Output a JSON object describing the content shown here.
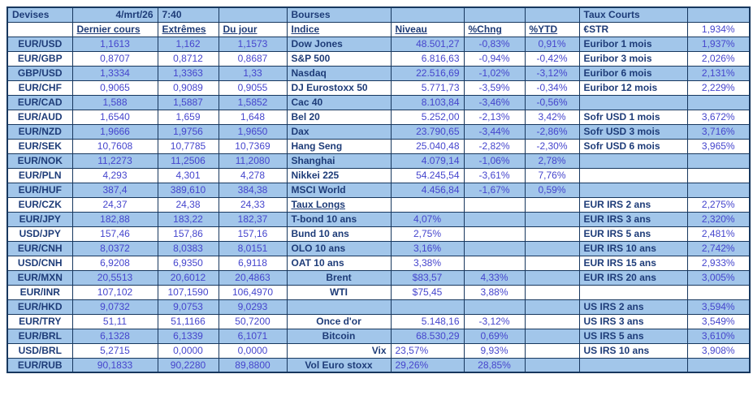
{
  "colors": {
    "band_blue": "#A2C6EA",
    "border_navy": "#17375E",
    "label_navy": "#1E3C78",
    "value_blue": "#4545CD"
  },
  "devises": {
    "title": "Devises",
    "date": "4/mrt/26",
    "time": "7:40",
    "headers": [
      "Dernier cours",
      "Extrêmes",
      "Du jour"
    ],
    "rows": [
      [
        "EUR/USD",
        "1,1613",
        "1,162",
        "1,1573"
      ],
      [
        "EUR/GBP",
        "0,8707",
        "0,8712",
        "0,8687"
      ],
      [
        "GBP/USD",
        "1,3334",
        "1,3363",
        "1,33"
      ],
      [
        "EUR/CHF",
        "0,9065",
        "0,9089",
        "0,9055"
      ],
      [
        "EUR/CAD",
        "1,588",
        "1,5887",
        "1,5852"
      ],
      [
        "EUR/AUD",
        "1,6540",
        "1,659",
        "1,648"
      ],
      [
        "EUR/NZD",
        "1,9666",
        "1,9756",
        "1,9650"
      ],
      [
        "EUR/SEK",
        "10,7608",
        "10,7785",
        "10,7369"
      ],
      [
        "EUR/NOK",
        "11,2273",
        "11,2506",
        "11,2080"
      ],
      [
        "EUR/PLN",
        "4,293",
        "4,301",
        "4,278"
      ],
      [
        "EUR/HUF",
        "387,4",
        "389,610",
        "384,38"
      ],
      [
        "EUR/CZK",
        "24,37",
        "24,38",
        "24,33"
      ],
      [
        "EUR/JPY",
        "182,88",
        "183,22",
        "182,37"
      ],
      [
        "USD/JPY",
        "157,46",
        "157,86",
        "157,16"
      ],
      [
        "EUR/CNH",
        "8,0372",
        "8,0383",
        "8,0151"
      ],
      [
        "USD/CNH",
        "6,9208",
        "6,9350",
        "6,9118"
      ],
      [
        "EUR/MXN",
        "20,5513",
        "20,6012",
        "20,4863"
      ],
      [
        "EUR/INR",
        "107,102",
        "107,1590",
        "106,4970"
      ],
      [
        "EUR/HKD",
        "9,0732",
        "9,0753",
        "9,0293"
      ],
      [
        "EUR/TRY",
        "51,11",
        "51,1166",
        "50,7200"
      ],
      [
        "EUR/BRL",
        "6,1328",
        "6,1339",
        "6,1071"
      ],
      [
        "USD/BRL",
        "5,2715",
        "0,0000",
        "0,0000"
      ],
      [
        "EUR/RUB",
        "90,1833",
        "90,2280",
        "89,8800"
      ]
    ]
  },
  "bourses": {
    "title": "Bourses",
    "headers": [
      "Indice",
      "Niveau",
      "%Chng",
      "%YTD"
    ],
    "indices": [
      [
        "Dow Jones",
        "48.501,27",
        "-0,83%",
        "0,91%"
      ],
      [
        "S&P 500",
        "6.816,63",
        "-0,94%",
        "-0,42%"
      ],
      [
        "Nasdaq",
        "22.516,69",
        "-1,02%",
        "-3,12%"
      ],
      [
        "DJ Eurostoxx 50",
        "5.771,73",
        "-3,59%",
        "-0,34%"
      ],
      [
        "Cac 40",
        "8.103,84",
        "-3,46%",
        "-0,56%"
      ],
      [
        "Bel 20",
        "5.252,00",
        "-2,13%",
        "3,42%"
      ],
      [
        "Dax",
        "23.790,65",
        "-3,44%",
        "-2,86%"
      ],
      [
        "Hang Seng",
        "25.040,48",
        "-2,82%",
        "-2,30%"
      ],
      [
        "Shanghai",
        "4.079,14",
        "-1,06%",
        "2,78%"
      ],
      [
        "Nikkei 225",
        "54.245,54",
        "-3,61%",
        "7,76%"
      ],
      [
        "MSCI World",
        "4.456,84",
        "-1,67%",
        "0,59%"
      ]
    ],
    "taux_longs": {
      "title": "Taux Longs",
      "rows": [
        [
          "T-bond 10 ans",
          "4,07%"
        ],
        [
          "Bund 10 ans",
          "2,75%"
        ],
        [
          "OLO 10 ans",
          "3,16%"
        ],
        [
          "OAT 10 ans",
          "3,38%"
        ]
      ]
    },
    "commodities": [
      [
        "Brent",
        "$83,57",
        "4,33%"
      ],
      [
        "WTI",
        "$75,45",
        "3,88%"
      ]
    ],
    "others": [
      [
        "Once d'or",
        "5.148,16",
        "-3,12%"
      ],
      [
        "Bitcoin",
        "68.530,29",
        "0,69%"
      ],
      [
        "Vix",
        "23,57%",
        "9,93%"
      ],
      [
        "Vol Euro stoxx",
        "29,26%",
        "28,85%"
      ]
    ]
  },
  "taux_courts": {
    "title": "Taux Courts",
    "groups": [
      {
        "rows": [
          [
            "€STR",
            "1,934%"
          ],
          [
            "Euribor 1 mois",
            "1,937%"
          ],
          [
            "Euribor 3 mois",
            "2,026%"
          ],
          [
            "Euribor 6 mois",
            "2,131%"
          ],
          [
            "Euribor 12 mois",
            "2,229%"
          ]
        ]
      },
      {
        "rows": [
          [
            "Sofr USD 1 mois",
            "3,672%"
          ],
          [
            "Sofr USD 3 mois",
            "3,716%"
          ],
          [
            "Sofr USD 6 mois",
            "3,965%"
          ]
        ]
      },
      {
        "rows": [
          [
            "EUR IRS 2 ans",
            "2,275%"
          ],
          [
            "EUR IRS 3 ans",
            "2,320%"
          ],
          [
            "EUR IRS 5 ans",
            "2,481%"
          ],
          [
            "EUR IRS 10 ans",
            "2,742%"
          ],
          [
            "EUR IRS 15 ans",
            "2,933%"
          ],
          [
            "EUR IRS 20 ans",
            "3,005%"
          ]
        ]
      },
      {
        "rows": [
          [
            "US IRS 2 ans",
            "3,594%"
          ],
          [
            "US IRS 3 ans",
            "3,549%"
          ],
          [
            "US IRS 5 ans",
            "3,610%"
          ],
          [
            "US IRS 10 ans",
            "3,908%"
          ]
        ]
      }
    ]
  }
}
